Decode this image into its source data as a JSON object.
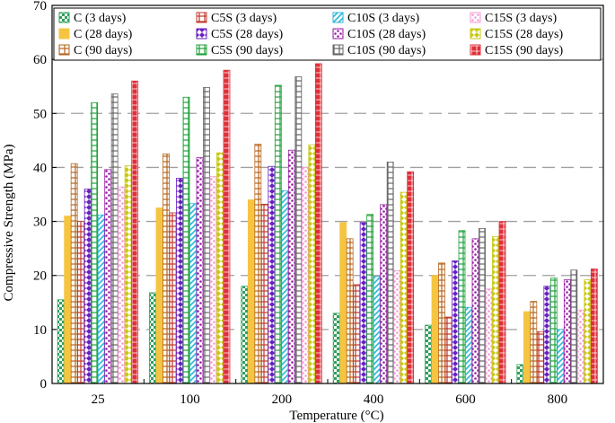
{
  "chart_data": {
    "type": "bar",
    "title": "",
    "xlabel": "Temperature (°C)",
    "ylabel": "Compressive  Strength (MPa)",
    "ylim": [
      0,
      70
    ],
    "yticks": [
      0,
      10,
      20,
      30,
      40,
      50,
      60,
      70
    ],
    "grid": "horizontal dashed",
    "legend_position": "top",
    "categories": [
      "25",
      "100",
      "200",
      "400",
      "600",
      "800"
    ],
    "series": [
      {
        "name": "C (3 days)",
        "color": "#2fa05a",
        "pattern": "checker",
        "values": [
          15.5,
          16.8,
          18.0,
          13.0,
          10.8,
          3.5
        ]
      },
      {
        "name": "C (28 days)",
        "color": "#f5c542",
        "pattern": "solid",
        "values": [
          31.0,
          32.5,
          34.0,
          29.8,
          20.0,
          13.3
        ]
      },
      {
        "name": "C (90 days)",
        "color": "#b5651d",
        "pattern": "hollow",
        "values": [
          40.7,
          42.5,
          44.3,
          26.8,
          22.3,
          15.2
        ]
      },
      {
        "name": "C5S (3 days)",
        "color": "#c0392b",
        "pattern": "hollow",
        "values": [
          30.0,
          31.6,
          33.2,
          18.3,
          12.3,
          9.6
        ]
      },
      {
        "name": "C5S (28 days)",
        "color": "#6a1fc2",
        "pattern": "diamond",
        "values": [
          36.0,
          38.0,
          40.2,
          29.8,
          22.7,
          18.0
        ]
      },
      {
        "name": "C5S (90 days)",
        "color": "#1fa23a",
        "pattern": "hollow",
        "values": [
          52.0,
          53.0,
          55.2,
          31.3,
          28.3,
          19.5
        ]
      },
      {
        "name": "C10S (3 days)",
        "color": "#29b6d8",
        "pattern": "diagonal",
        "values": [
          31.2,
          33.3,
          35.7,
          19.8,
          14.1,
          10.0
        ]
      },
      {
        "name": "C10S (28 days)",
        "color": "#9b1fa8",
        "pattern": "dots",
        "values": [
          39.6,
          41.8,
          43.2,
          33.1,
          26.8,
          19.2
        ]
      },
      {
        "name": "C10S (90 days)",
        "color": "#666666",
        "pattern": "hollow",
        "values": [
          53.6,
          54.8,
          56.8,
          41.0,
          28.7,
          21.0
        ]
      },
      {
        "name": "C15S (3 days)",
        "color": "#f49ad6",
        "pattern": "dots",
        "values": [
          36.4,
          38.3,
          40.0,
          20.9,
          17.5,
          13.6
        ]
      },
      {
        "name": "C15S (28 days)",
        "color": "#c9c915",
        "pattern": "diamond",
        "values": [
          40.3,
          42.7,
          44.2,
          35.4,
          27.2,
          19.2
        ]
      },
      {
        "name": "C15S (90 days)",
        "color": "#e0303a",
        "pattern": "hatch",
        "values": [
          56.0,
          58.0,
          59.2,
          39.2,
          30.0,
          21.2
        ]
      }
    ]
  }
}
